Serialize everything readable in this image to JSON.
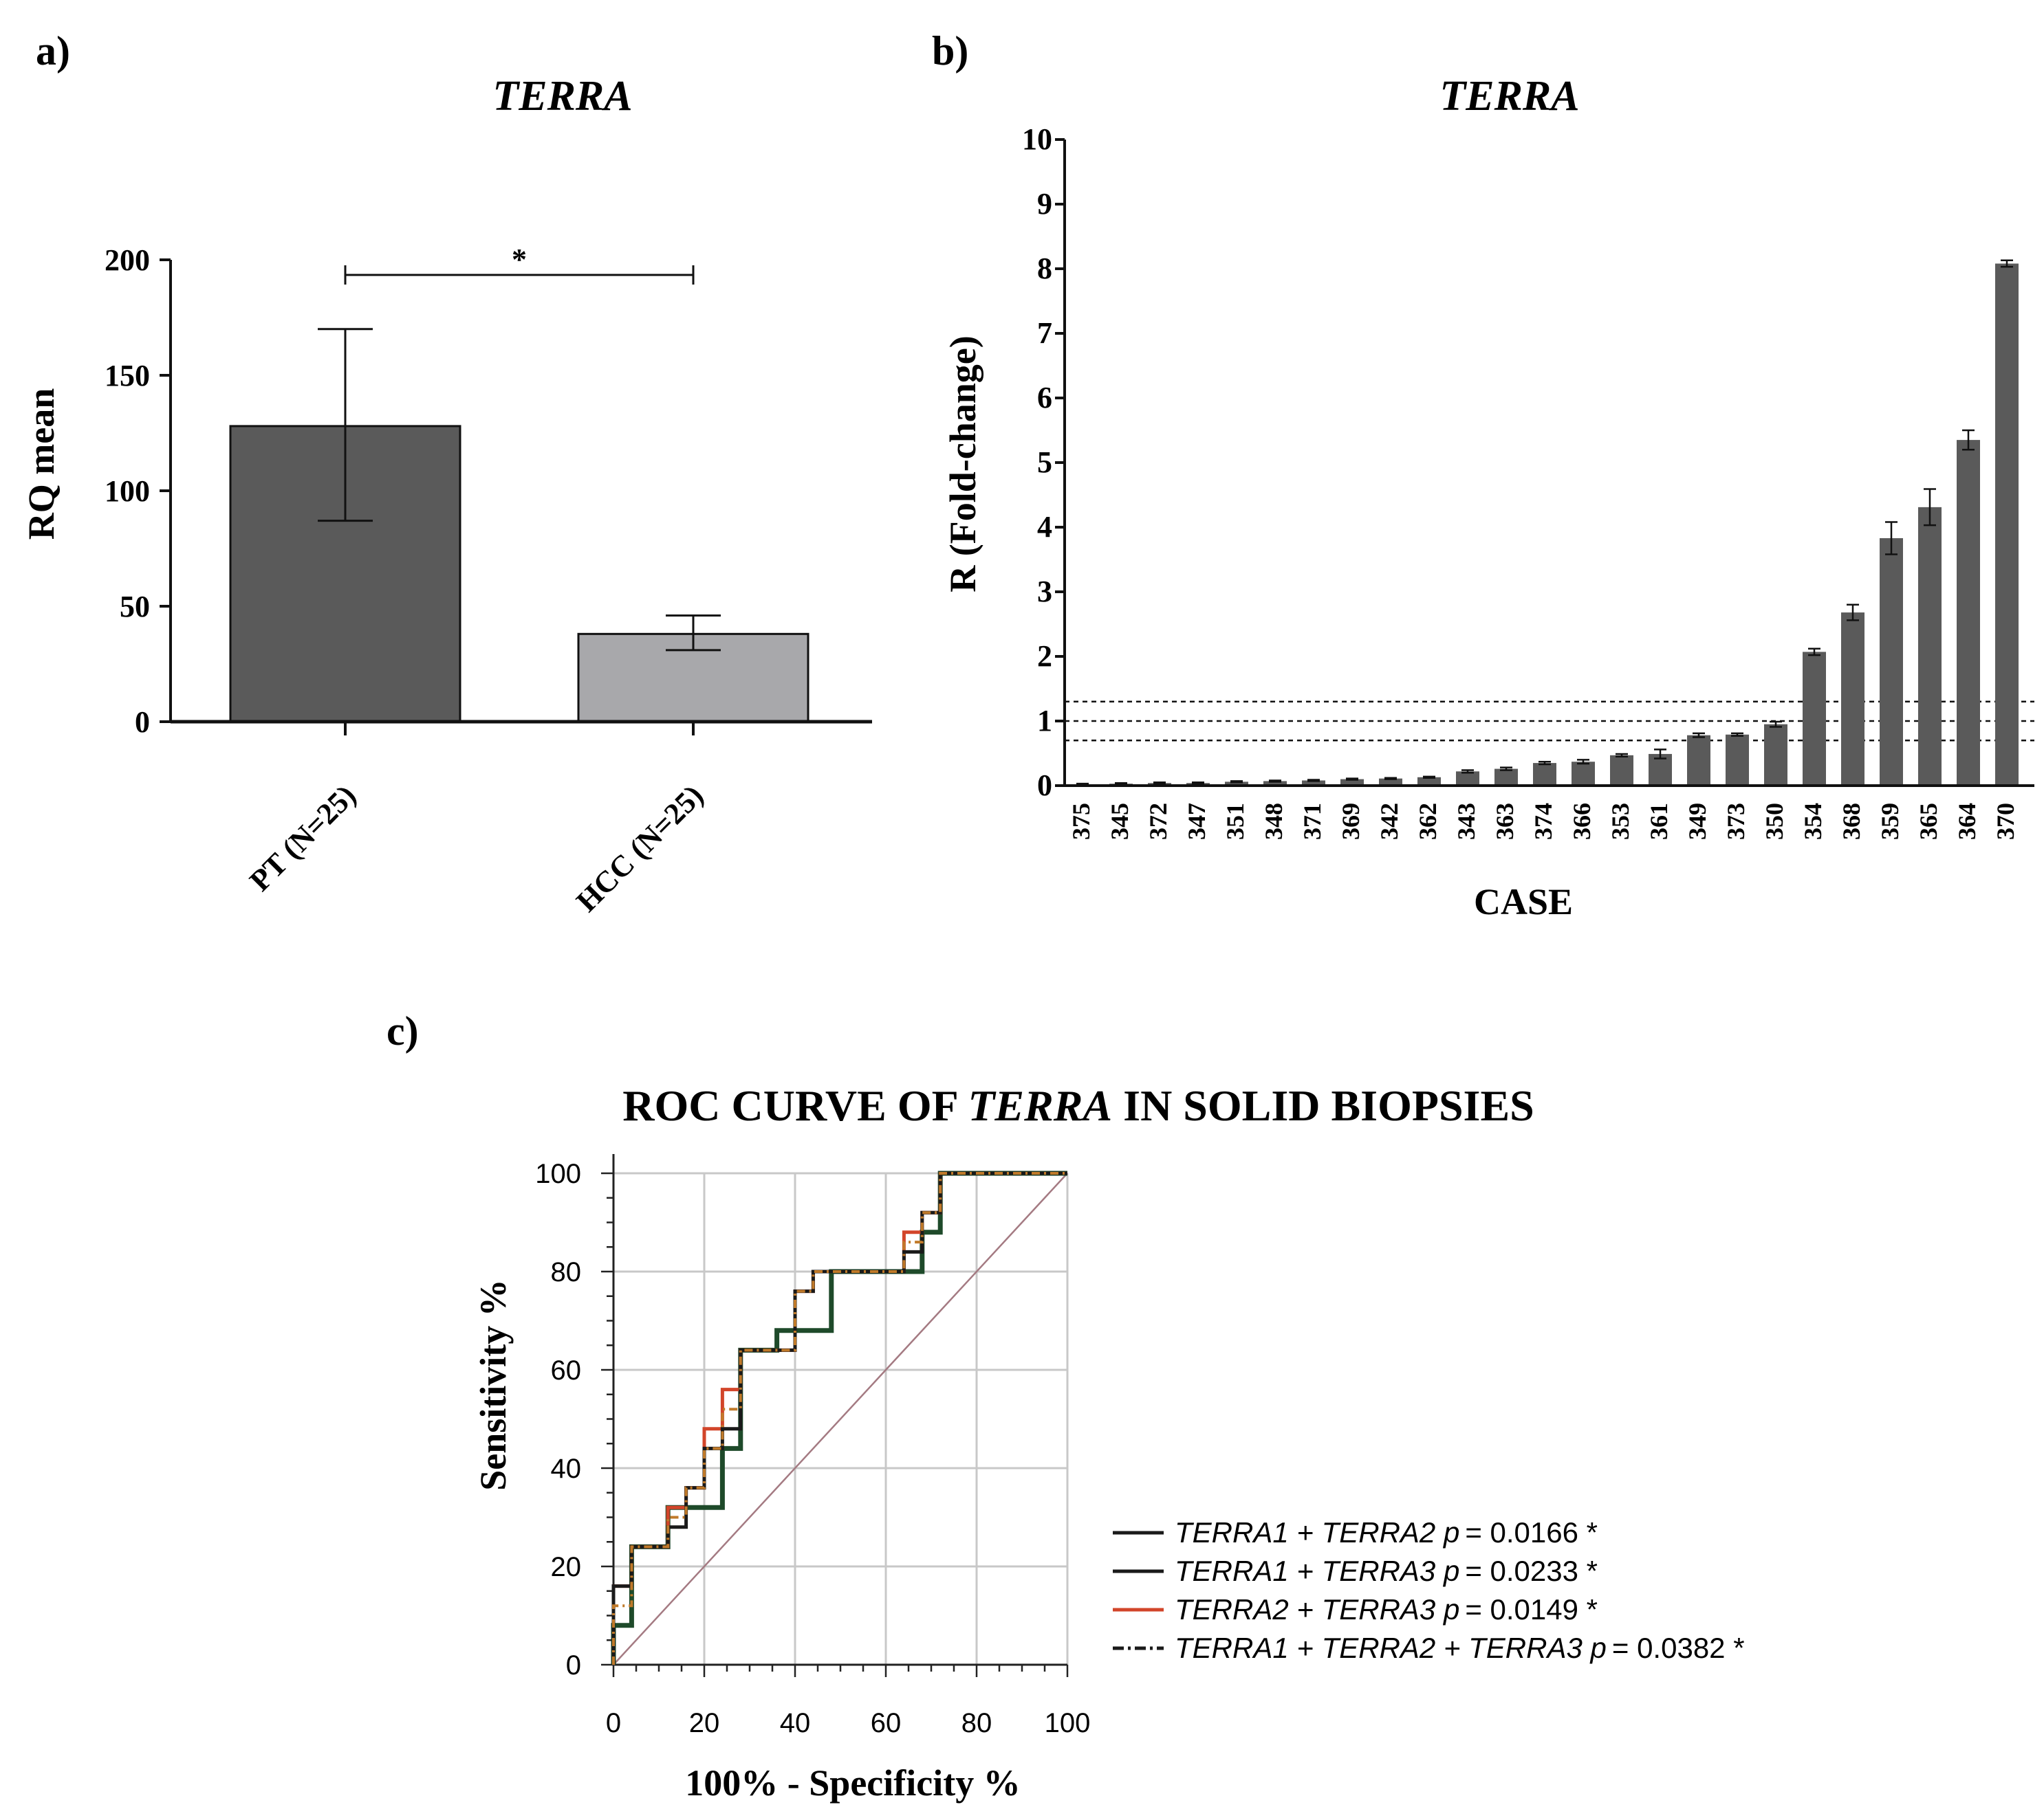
{
  "chart_data": [
    {
      "panel": "a)",
      "type": "bar",
      "title": "TERRA",
      "categories": [
        "PT (N=25)",
        "HCC (N=25)"
      ],
      "values": [
        128,
        38
      ],
      "error_high": [
        170,
        46
      ],
      "error_low": [
        87,
        31
      ],
      "colors": [
        "#5a5a5a",
        "#a8a8ab"
      ],
      "ylabel": "RQ mean",
      "xlabel": "",
      "ylim": [
        0,
        200
      ],
      "yticks": [
        "0",
        "50",
        "100",
        "150",
        "200"
      ],
      "significance": "*"
    },
    {
      "panel": "b)",
      "type": "bar",
      "title": "TERRA",
      "categories": [
        "375",
        "345",
        "372",
        "347",
        "351",
        "348",
        "371",
        "369",
        "342",
        "362",
        "343",
        "363",
        "374",
        "366",
        "353",
        "361",
        "349",
        "373",
        "350",
        "354",
        "368",
        "359",
        "365",
        "364",
        "370"
      ],
      "values": [
        0.02,
        0.03,
        0.04,
        0.04,
        0.06,
        0.07,
        0.08,
        0.1,
        0.11,
        0.13,
        0.22,
        0.26,
        0.35,
        0.37,
        0.47,
        0.49,
        0.78,
        0.79,
        0.95,
        2.07,
        2.68,
        3.83,
        4.31,
        5.35,
        8.08
      ],
      "errors": [
        0.01,
        0.01,
        0.01,
        0.01,
        0.01,
        0.01,
        0.01,
        0.01,
        0.01,
        0.01,
        0.02,
        0.02,
        0.02,
        0.03,
        0.02,
        0.07,
        0.03,
        0.02,
        0.04,
        0.05,
        0.12,
        0.25,
        0.28,
        0.15,
        0.05
      ],
      "color": "#5a5a5a",
      "reference_lines": [
        0.7,
        1.0,
        1.3
      ],
      "ylabel": "R (Fold-change)",
      "xlabel": "CASE",
      "ylim": [
        0,
        10
      ],
      "yticks": [
        "0",
        "1",
        "2",
        "3",
        "4",
        "5",
        "6",
        "7",
        "8",
        "9",
        "10"
      ]
    },
    {
      "panel": "c)",
      "type": "line",
      "title_parts": [
        "ROC CURVE OF ",
        "TERRA",
        " IN SOLID BIOPSIES"
      ],
      "xlabel": "100% - Specificity %",
      "ylabel": "Sensitivity %",
      "xlim": [
        0,
        100
      ],
      "ylim": [
        0,
        100
      ],
      "xticks": [
        "0",
        "20",
        "40",
        "60",
        "80",
        "100"
      ],
      "yticks": [
        "0",
        "20",
        "40",
        "60",
        "80",
        "100"
      ],
      "grid": true,
      "reference_line": [
        [
          0,
          0
        ],
        [
          100,
          100
        ]
      ],
      "series": [
        {
          "name": "TERRA1 + TERRA2",
          "p_label": "p",
          "p_value": "= 0.0166 *",
          "color": "#1a1a1a",
          "style": "solid",
          "points": [
            [
              0,
              0
            ],
            [
              0,
              16
            ],
            [
              4,
              16
            ],
            [
              4,
              24
            ],
            [
              12,
              24
            ],
            [
              12,
              28
            ],
            [
              16,
              28
            ],
            [
              16,
              36
            ],
            [
              20,
              36
            ],
            [
              20,
              44
            ],
            [
              24,
              44
            ],
            [
              24,
              48
            ],
            [
              28,
              48
            ],
            [
              28,
              64
            ],
            [
              40,
              64
            ],
            [
              40,
              76
            ],
            [
              44,
              76
            ],
            [
              44,
              80
            ],
            [
              64,
              80
            ],
            [
              64,
              84
            ],
            [
              68,
              84
            ],
            [
              68,
              92
            ],
            [
              72,
              92
            ],
            [
              72,
              100
            ],
            [
              100,
              100
            ]
          ]
        },
        {
          "name": "TERRA1 + TERRA3",
          "p_label": "p",
          "p_value": "= 0.0233 *",
          "color": "#1e4a2a",
          "style": "solid",
          "points": [
            [
              0,
              0
            ],
            [
              0,
              8
            ],
            [
              4,
              8
            ],
            [
              4,
              24
            ],
            [
              12,
              24
            ],
            [
              12,
              32
            ],
            [
              24,
              32
            ],
            [
              24,
              44
            ],
            [
              28,
              44
            ],
            [
              28,
              64
            ],
            [
              36,
              64
            ],
            [
              36,
              68
            ],
            [
              48,
              68
            ],
            [
              48,
              80
            ],
            [
              68,
              80
            ],
            [
              68,
              88
            ],
            [
              72,
              88
            ],
            [
              72,
              100
            ],
            [
              100,
              100
            ]
          ]
        },
        {
          "name": "TERRA2 + TERRA3",
          "p_label": "p",
          "p_value": "= 0.0149 *",
          "color": "#d2452a",
          "style": "solid",
          "points": [
            [
              0,
              0
            ],
            [
              0,
              16
            ],
            [
              4,
              16
            ],
            [
              4,
              24
            ],
            [
              12,
              24
            ],
            [
              12,
              32
            ],
            [
              16,
              32
            ],
            [
              16,
              36
            ],
            [
              20,
              36
            ],
            [
              20,
              48
            ],
            [
              24,
              48
            ],
            [
              24,
              56
            ],
            [
              28,
              56
            ],
            [
              28,
              64
            ],
            [
              40,
              64
            ],
            [
              40,
              76
            ],
            [
              44,
              76
            ],
            [
              44,
              80
            ],
            [
              64,
              80
            ],
            [
              64,
              88
            ],
            [
              68,
              88
            ],
            [
              68,
              92
            ],
            [
              72,
              92
            ],
            [
              72,
              100
            ],
            [
              100,
              100
            ]
          ]
        },
        {
          "name": "TERRA1 + TERRA2 + TERRA3",
          "p_label": "p",
          "p_value": "= 0.0382 *",
          "color": "#1a1a1a",
          "style": "dashdot",
          "points": [
            [
              0,
              0
            ],
            [
              0,
              12
            ],
            [
              4,
              12
            ],
            [
              4,
              24
            ],
            [
              12,
              24
            ],
            [
              12,
              30
            ],
            [
              16,
              30
            ],
            [
              16,
              36
            ],
            [
              20,
              36
            ],
            [
              20,
              44
            ],
            [
              24,
              44
            ],
            [
              24,
              52
            ],
            [
              28,
              52
            ],
            [
              28,
              64
            ],
            [
              40,
              64
            ],
            [
              40,
              76
            ],
            [
              44,
              76
            ],
            [
              44,
              80
            ],
            [
              64,
              80
            ],
            [
              64,
              86
            ],
            [
              68,
              86
            ],
            [
              68,
              92
            ],
            [
              72,
              92
            ],
            [
              72,
              100
            ],
            [
              100,
              100
            ]
          ]
        }
      ]
    }
  ]
}
